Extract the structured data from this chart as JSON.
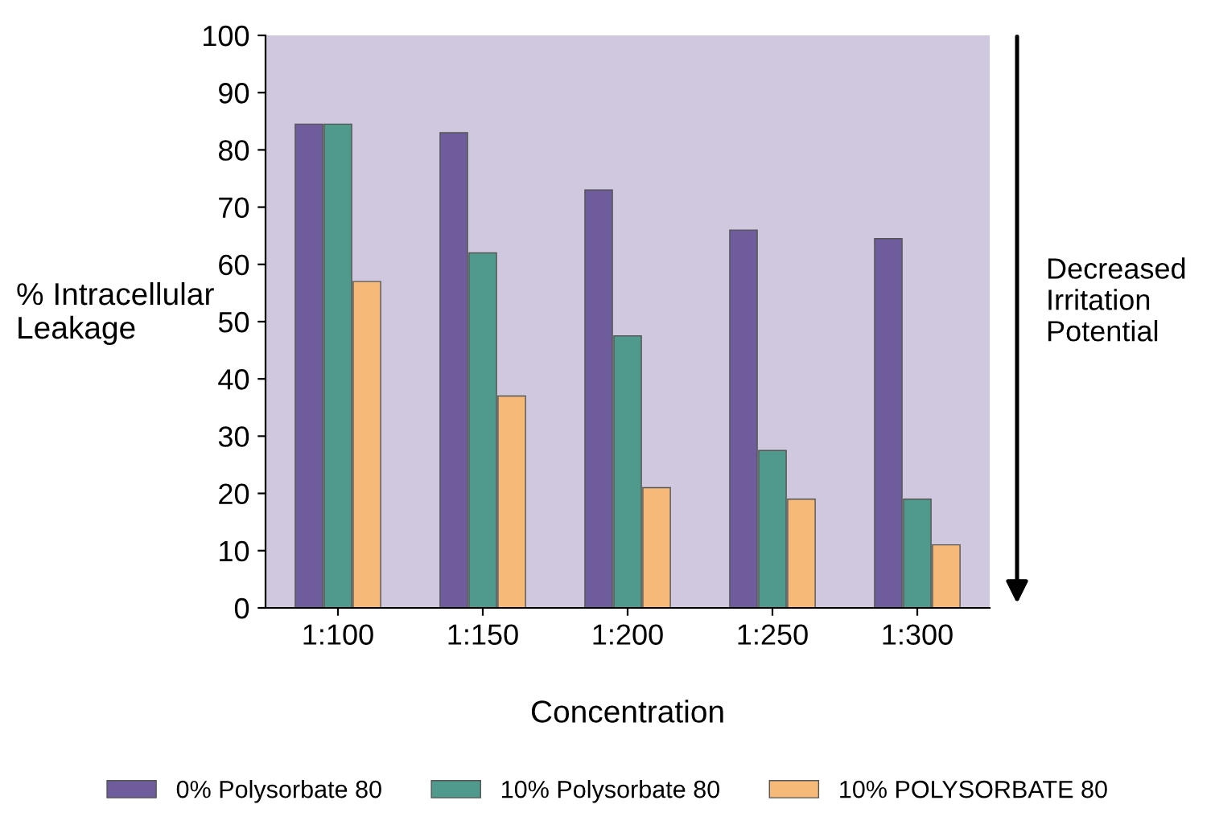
{
  "chart_data": {
    "type": "bar",
    "xlabel": "Concentration",
    "ylabel": "% Intracellular\nLeakage",
    "categories": [
      "1:100",
      "1:150",
      "1:200",
      "1:250",
      "1:300"
    ],
    "series": [
      {
        "name": "0% Polysorbate 80",
        "color": "#6e5c9c",
        "values": [
          84.5,
          83,
          73,
          66,
          64.5
        ]
      },
      {
        "name": "10% Polysorbate 80",
        "color": "#4f9a8c",
        "values": [
          84.5,
          62,
          47.5,
          27.5,
          19
        ]
      },
      {
        "name": "10% POLYSORBATE 80",
        "color": "#f7b978",
        "values": [
          57,
          37,
          21,
          19,
          11
        ]
      }
    ],
    "ylim": [
      0,
      100
    ],
    "yticks": [
      0,
      10,
      20,
      30,
      40,
      50,
      60,
      70,
      80,
      90,
      100
    ],
    "annotations": [
      "Decreased\nIrritation\nPotential"
    ],
    "grid": false,
    "legend": "bottom"
  }
}
